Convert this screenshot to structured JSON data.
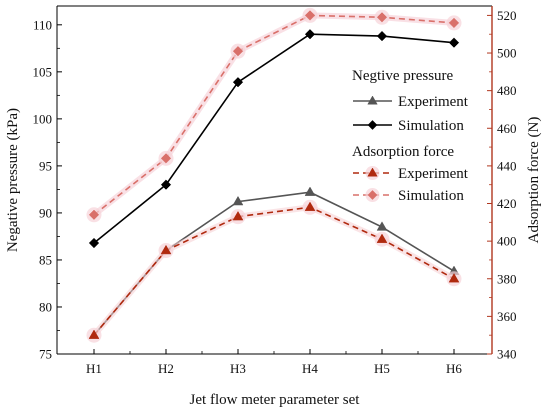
{
  "chart_data": {
    "type": "line",
    "categories": [
      "H1",
      "H2",
      "H3",
      "H4",
      "H5",
      "H6"
    ],
    "xlabel": "Jet flow meter parameter set",
    "ylabel_left": "Negative pressure (kPa)",
    "ylabel_right": "Adsorption force (N)",
    "ylim_left": [
      75,
      112
    ],
    "yticks_left": [
      75,
      80,
      85,
      90,
      95,
      100,
      105,
      110
    ],
    "ylim_right": [
      340,
      525
    ],
    "yticks_right": [
      340,
      360,
      380,
      400,
      420,
      440,
      460,
      480,
      500,
      520
    ],
    "grid": false,
    "legend_position": "right",
    "legend_groups": [
      {
        "title": "Negtive pressure",
        "entries": [
          "Experiment",
          "Simulation"
        ]
      },
      {
        "title": "Adsorption force",
        "entries": [
          "Experiment",
          "Simulation"
        ]
      }
    ],
    "series": [
      {
        "name": "Experiment",
        "group": "Negtive pressure",
        "axis": "left",
        "color": "#555555",
        "marker": "triangle",
        "dash": false,
        "values": [
          77.0,
          86.0,
          91.2,
          92.2,
          88.5,
          83.8
        ]
      },
      {
        "name": "Simulation",
        "group": "Negtive pressure",
        "axis": "left",
        "color": "#000000",
        "marker": "diamond",
        "dash": false,
        "values": [
          86.8,
          93.0,
          103.9,
          109.0,
          108.8,
          108.1
        ]
      },
      {
        "name": "Experiment",
        "group": "Adsorption force",
        "axis": "right",
        "color": "#b02a0f",
        "marker": "triangle",
        "dash": true,
        "values": [
          350,
          395,
          413,
          418,
          401,
          380
        ]
      },
      {
        "name": "Simulation",
        "group": "Adsorption force",
        "axis": "right",
        "color": "#d9706a",
        "marker": "diamond",
        "dash": true,
        "values": [
          414,
          444,
          501,
          520,
          519,
          516
        ]
      }
    ]
  }
}
